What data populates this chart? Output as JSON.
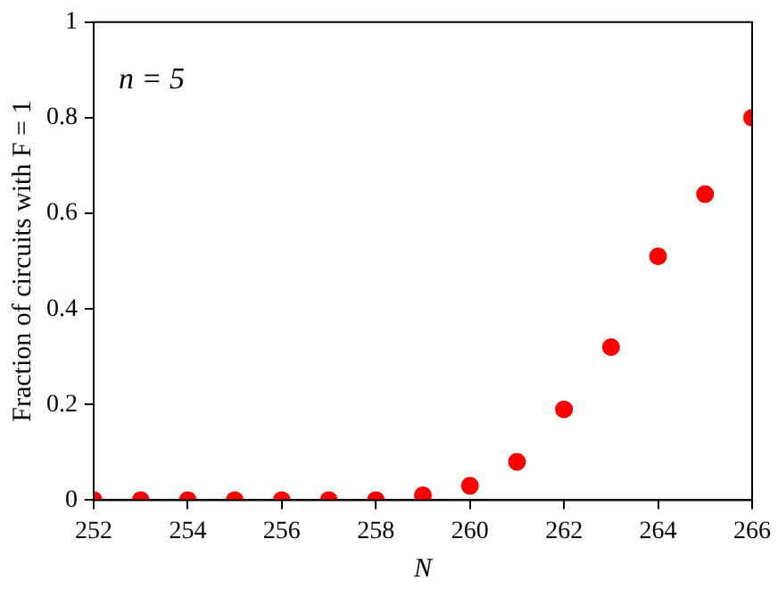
{
  "chart_data": {
    "type": "scatter",
    "xlabel": "N",
    "ylabel": "Fraction of circuits with F = 1",
    "annotations": [
      "n = 5"
    ],
    "x": [
      252,
      253,
      254,
      255,
      256,
      257,
      258,
      259,
      260,
      261,
      262,
      263,
      264,
      265,
      266
    ],
    "series": [
      {
        "color": "#ff0000",
        "values": [
          0,
          0,
          0,
          0,
          0,
          0,
          0,
          0.01,
          0.03,
          0.08,
          0.19,
          0.32,
          0.51,
          0.64,
          0.8
        ]
      }
    ],
    "xlim": [
      252,
      266
    ],
    "xticks": [
      252,
      254,
      256,
      258,
      260,
      262,
      264,
      266
    ],
    "ylim": [
      0,
      1
    ],
    "yticks": [
      0,
      0.2,
      0.4,
      0.6,
      0.8,
      1
    ],
    "marker": "circle",
    "grid": false,
    "legend": false
  }
}
